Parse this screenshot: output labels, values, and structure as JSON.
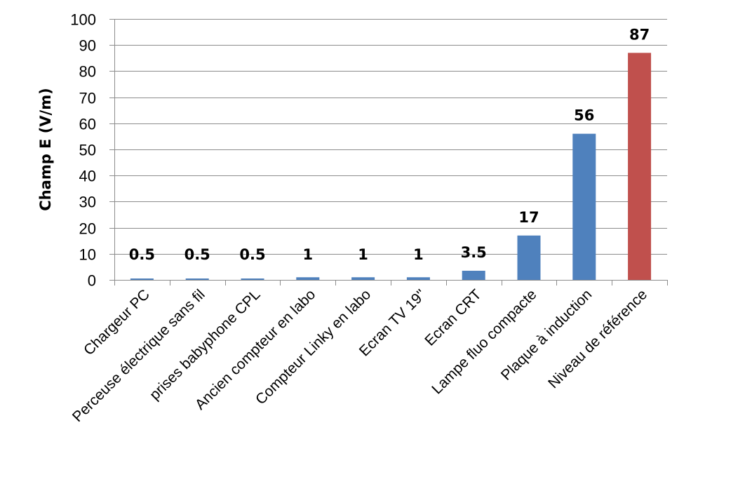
{
  "chart_data": {
    "type": "bar",
    "title": "",
    "xlabel": "",
    "ylabel": "Champ E (V/m)",
    "ylim": [
      0,
      100
    ],
    "yticks": [
      0,
      10,
      20,
      30,
      40,
      50,
      60,
      70,
      80,
      90,
      100
    ],
    "grid": true,
    "legend": "none",
    "categories": [
      "Chargeur PC",
      "Perceuse électrique sans fil",
      "prises babyphone CPL",
      "Ancien compteur en labo",
      "Compteur Linky en labo",
      "Ecran TV 19''",
      "Ecran CRT",
      "Lampe fluo compacte",
      "Plaque à induction",
      "Niveau de référence"
    ],
    "values": [
      0.5,
      0.5,
      0.5,
      1,
      1,
      1,
      3.5,
      17,
      56,
      87
    ],
    "data_labels": [
      "0.5",
      "0.5",
      "0.5",
      "1",
      "1",
      "1",
      "3.5",
      "17",
      "56",
      "87"
    ],
    "colors": [
      "#4f81bd",
      "#4f81bd",
      "#4f81bd",
      "#4f81bd",
      "#4f81bd",
      "#4f81bd",
      "#4f81bd",
      "#4f81bd",
      "#4f81bd",
      "#c0504d"
    ]
  }
}
